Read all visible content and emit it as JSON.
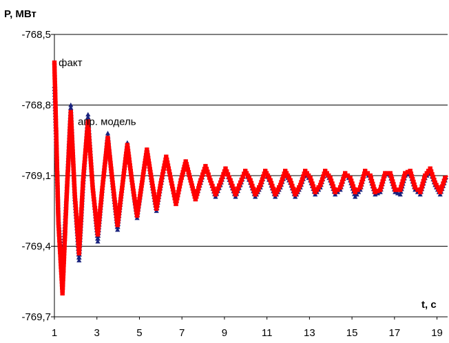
{
  "chart_data": {
    "type": "line",
    "title": "",
    "ylabel": "P, МВт",
    "xlabel": "t, c",
    "xlim": [
      1,
      19.5
    ],
    "ylim": [
      -769.7,
      -768.5
    ],
    "yticks": [
      -768.5,
      -768.8,
      -769.1,
      -769.4,
      -769.7
    ],
    "ytick_labels": [
      "-768,5",
      "-768,8",
      "-769,1",
      "-769,4",
      "-769,7"
    ],
    "xticks": [
      1,
      3,
      5,
      7,
      9,
      11,
      13,
      15,
      17,
      19
    ],
    "xtick_labels": [
      "1",
      "3",
      "5",
      "7",
      "9",
      "11",
      "13",
      "15",
      "17",
      "19"
    ],
    "grid": "horizontal",
    "annotations": [
      {
        "text": "факт",
        "x": 1.2,
        "y": -768.62
      },
      {
        "text": "апр. модель",
        "x": 2.1,
        "y": -768.87
      }
    ],
    "series": [
      {
        "label": "апр. модель",
        "color": "#1a237e",
        "marker": "triangle",
        "x": [
          1.0,
          1.19,
          1.38,
          1.57,
          1.77,
          1.96,
          2.16,
          2.35,
          2.58,
          2.8,
          3.04,
          3.27,
          3.51,
          3.74,
          3.97,
          4.2,
          4.43,
          4.66,
          4.89,
          5.12,
          5.35,
          5.58,
          5.8,
          6.03,
          6.26,
          6.49,
          6.72,
          6.95,
          7.18,
          7.41,
          7.64,
          7.88,
          8.11,
          8.34,
          8.58,
          8.81,
          9.05,
          9.28,
          9.52,
          9.75,
          9.98,
          10.22,
          10.45,
          10.69,
          10.92,
          11.16,
          11.39,
          11.63,
          11.86,
          12.1,
          12.33,
          12.57,
          12.8,
          13.04,
          13.27,
          13.51,
          13.74,
          13.98,
          14.21,
          14.45,
          14.68,
          14.92,
          15.15,
          15.39,
          15.62,
          15.86,
          16.09,
          16.33,
          16.56,
          16.8,
          17.03,
          17.27,
          17.5,
          17.74,
          17.97,
          18.21,
          18.44,
          18.68,
          18.91,
          19.15,
          19.38,
          19.5
        ],
        "y": [
          -768.72,
          -769.28,
          -769.5,
          -769.18,
          -768.8,
          -769.2,
          -769.46,
          -769.14,
          -768.84,
          -769.14,
          -769.38,
          -769.14,
          -768.92,
          -769.14,
          -769.33,
          -769.14,
          -768.96,
          -769.13,
          -769.28,
          -769.13,
          -768.99,
          -769.13,
          -769.25,
          -769.13,
          -769.02,
          -769.12,
          -769.22,
          -769.12,
          -769.04,
          -769.12,
          -769.2,
          -769.13,
          -769.06,
          -769.12,
          -769.19,
          -769.14,
          -769.07,
          -769.13,
          -769.19,
          -769.14,
          -769.08,
          -769.13,
          -769.19,
          -769.15,
          -769.08,
          -769.13,
          -769.19,
          -769.15,
          -769.09,
          -769.13,
          -769.19,
          -769.15,
          -769.09,
          -769.12,
          -769.18,
          -769.15,
          -769.08,
          -769.12,
          -769.18,
          -769.16,
          -769.09,
          -769.12,
          -769.19,
          -769.16,
          -769.08,
          -769.11,
          -769.18,
          -769.17,
          -769.09,
          -769.1,
          -769.17,
          -769.18,
          -769.1,
          -769.09,
          -769.16,
          -769.18,
          -769.11,
          -769.08,
          -769.14,
          -769.18,
          -769.12,
          -769.11
        ]
      },
      {
        "label": "факт",
        "color": "#ff0000",
        "marker": "square",
        "x": [
          1.0,
          1.19,
          1.38,
          1.57,
          1.77,
          1.96,
          2.16,
          2.35,
          2.58,
          2.8,
          3.04,
          3.27,
          3.51,
          3.74,
          3.97,
          4.2,
          4.43,
          4.66,
          4.89,
          5.12,
          5.35,
          5.58,
          5.8,
          6.03,
          6.26,
          6.49,
          6.72,
          6.95,
          7.18,
          7.41,
          7.64,
          7.88,
          8.11,
          8.34,
          8.58,
          8.81,
          9.05,
          9.28,
          9.52,
          9.75,
          9.98,
          10.22,
          10.45,
          10.69,
          10.92,
          11.16,
          11.39,
          11.63,
          11.86,
          12.1,
          12.33,
          12.57,
          12.8,
          13.04,
          13.27,
          13.51,
          13.74,
          13.98,
          14.21,
          14.45,
          14.68,
          14.92,
          15.15,
          15.39,
          15.62,
          15.86,
          16.09,
          16.33,
          16.56,
          16.8,
          17.03,
          17.27,
          17.5,
          17.74,
          17.97,
          18.21,
          18.44,
          18.68,
          18.91,
          19.15,
          19.38,
          19.5
        ],
        "y": [
          -768.62,
          -769.3,
          -769.6,
          -769.2,
          -768.83,
          -769.18,
          -769.43,
          -769.12,
          -768.87,
          -769.15,
          -769.35,
          -769.14,
          -768.94,
          -769.13,
          -769.31,
          -769.14,
          -768.97,
          -769.13,
          -769.27,
          -769.13,
          -768.99,
          -769.12,
          -769.24,
          -769.12,
          -769.02,
          -769.12,
          -769.22,
          -769.12,
          -769.04,
          -769.12,
          -769.2,
          -769.12,
          -769.06,
          -769.12,
          -769.18,
          -769.13,
          -769.07,
          -769.12,
          -769.18,
          -769.13,
          -769.08,
          -769.12,
          -769.18,
          -769.14,
          -769.08,
          -769.12,
          -769.18,
          -769.14,
          -769.08,
          -769.12,
          -769.18,
          -769.14,
          -769.08,
          -769.11,
          -769.17,
          -769.14,
          -769.08,
          -769.11,
          -769.17,
          -769.15,
          -769.09,
          -769.11,
          -769.17,
          -769.15,
          -769.08,
          -769.1,
          -769.17,
          -769.16,
          -769.09,
          -769.09,
          -769.16,
          -769.16,
          -769.09,
          -769.08,
          -769.15,
          -769.17,
          -769.1,
          -769.07,
          -769.13,
          -769.17,
          -769.11,
          -769.1
        ]
      }
    ]
  }
}
